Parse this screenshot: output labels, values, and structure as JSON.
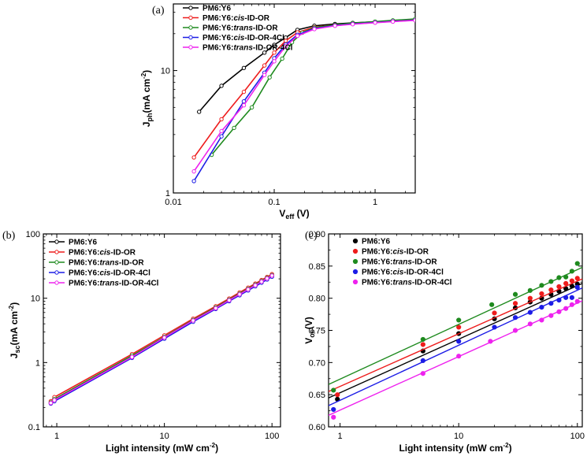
{
  "colors": {
    "PM6:Y6": "#000000",
    "PM6:Y6:cis-ID-OR": "#ee1c1c",
    "PM6:Y6:trans-ID-OR": "#1e8a1e",
    "PM6:Y6:cis-ID-OR-4Cl": "#1c1ce6",
    "PM6:Y6:trans-ID-OR-4Cl": "#ee22ee"
  },
  "chart_data": [
    {
      "panel": "(a)",
      "type": "line",
      "xscale": "log",
      "yscale": "log",
      "xlim": [
        0.01,
        2.5
      ],
      "ylim": [
        1,
        35
      ],
      "xticks": [
        0.01,
        0.1,
        1
      ],
      "xtick_labels": [
        "0.01",
        "0.1",
        "1"
      ],
      "yticks": [
        1,
        10
      ],
      "ytick_labels": [
        "1",
        "10"
      ],
      "xlabel_main": "V",
      "xlabel_sub": "eff",
      "xlabel_unit": " (V)",
      "ylabel_main": "J",
      "ylabel_sub": "ph",
      "ylabel_unit": "(mA cm",
      "ylabel_sup": "-2",
      "ylabel_end": ")",
      "legend": "top-left",
      "series": [
        {
          "name": "PM6:Y6",
          "name_parts": [
            "PM6:Y6",
            "",
            ""
          ],
          "x": [
            0.018,
            0.03,
            0.05,
            0.08,
            0.1,
            0.13,
            0.17,
            0.25,
            0.4,
            0.6,
            1.0,
            1.5,
            2.5
          ],
          "y": [
            4.6,
            7.5,
            10.5,
            14.0,
            16.2,
            18.6,
            21.5,
            23.2,
            24.0,
            24.5,
            25.0,
            25.4,
            26.0
          ]
        },
        {
          "name": "PM6:Y6:cis-ID-OR",
          "name_parts": [
            "PM6:Y6:",
            "cis",
            "-ID-OR"
          ],
          "x": [
            0.016,
            0.03,
            0.05,
            0.08,
            0.1,
            0.13,
            0.17,
            0.25,
            0.4,
            0.6,
            1.0,
            1.5,
            2.5
          ],
          "y": [
            1.95,
            4.0,
            6.7,
            11.0,
            14.0,
            17.5,
            20.5,
            22.6,
            23.6,
            24.2,
            24.9,
            25.5,
            26.2
          ]
        },
        {
          "name": "PM6:Y6:trans-ID-OR",
          "name_parts": [
            "PM6:Y6:",
            "trans",
            "-ID-OR"
          ],
          "x": [
            0.024,
            0.04,
            0.06,
            0.09,
            0.12,
            0.15,
            0.19,
            0.25,
            0.4,
            0.6,
            1.0,
            1.5,
            2.5
          ],
          "y": [
            2.05,
            3.4,
            5.0,
            8.8,
            12.5,
            17.0,
            20.4,
            22.4,
            23.6,
            24.4,
            25.1,
            25.7,
            26.4
          ]
        },
        {
          "name": "PM6:Y6:cis-ID-OR-4Cl",
          "name_parts": [
            "PM6:Y6:",
            "cis",
            "-ID-OR-4Cl"
          ],
          "x": [
            0.016,
            0.03,
            0.05,
            0.08,
            0.1,
            0.13,
            0.17,
            0.25,
            0.4,
            0.6,
            1.0,
            1.5,
            2.5
          ],
          "y": [
            1.25,
            2.9,
            5.6,
            9.6,
            12.6,
            16.3,
            19.6,
            22.0,
            23.3,
            24.0,
            24.7,
            25.2,
            25.8
          ]
        },
        {
          "name": "PM6:Y6:trans-ID-OR-4Cl",
          "name_parts": [
            "PM6:Y6:",
            "trans",
            "-ID-OR-4Cl"
          ],
          "x": [
            0.016,
            0.03,
            0.05,
            0.08,
            0.1,
            0.13,
            0.17,
            0.25,
            0.4,
            0.6,
            1.0,
            1.5,
            2.5
          ],
          "y": [
            1.5,
            3.2,
            5.2,
            9.2,
            11.9,
            15.8,
            19.2,
            21.8,
            23.2,
            23.9,
            24.6,
            25.1,
            25.7
          ]
        }
      ]
    },
    {
      "panel": "(b)",
      "type": "line",
      "xscale": "log",
      "yscale": "log",
      "xlim": [
        0.75,
        120
      ],
      "ylim": [
        0.1,
        100
      ],
      "xticks": [
        1,
        10,
        100
      ],
      "xtick_labels": [
        "1",
        "10",
        "100"
      ],
      "yticks": [
        0.1,
        1,
        10,
        100
      ],
      "ytick_labels": [
        "0.1",
        "1",
        "10",
        "100"
      ],
      "xlabel_main": "Light intensity (mW cm",
      "xlabel_sup": "-2",
      "xlabel_end": ")",
      "ylabel_main": "J",
      "ylabel_sub": "sc",
      "ylabel_unit": "(mA cm",
      "ylabel_sup": "-2",
      "ylabel_end": ")",
      "legend": "top-left",
      "series": [
        {
          "name": "PM6:Y6",
          "name_parts": [
            "PM6:Y6",
            "",
            ""
          ],
          "x": [
            0.88,
            0.95,
            5,
            10,
            18.5,
            30,
            40,
            50,
            60,
            70,
            80,
            90,
            100
          ],
          "y": [
            0.235,
            0.255,
            1.2,
            2.4,
            4.4,
            6.9,
            9.1,
            11.3,
            13.4,
            15.6,
            17.8,
            20.0,
            22.2
          ]
        },
        {
          "name": "PM6:Y6:cis-ID-OR",
          "name_parts": [
            "PM6:Y6:",
            "cis",
            "-ID-OR"
          ],
          "x": [
            0.88,
            0.95,
            5,
            10,
            18.5,
            30,
            40,
            50,
            60,
            70,
            80,
            90,
            100
          ],
          "y": [
            0.25,
            0.29,
            1.35,
            2.65,
            4.8,
            7.5,
            9.9,
            12.3,
            14.6,
            16.9,
            19.2,
            21.4,
            23.7
          ]
        },
        {
          "name": "PM6:Y6:trans-ID-OR",
          "name_parts": [
            "PM6:Y6:",
            "trans",
            "-ID-OR"
          ],
          "x": [
            0.88,
            0.95,
            5,
            10,
            18.5,
            30,
            40,
            50,
            60,
            70,
            80,
            90,
            100
          ],
          "y": [
            0.24,
            0.27,
            1.28,
            2.5,
            4.6,
            7.2,
            9.5,
            11.8,
            14.0,
            16.3,
            18.5,
            20.7,
            22.9
          ]
        },
        {
          "name": "PM6:Y6:cis-ID-OR-4Cl",
          "name_parts": [
            "PM6:Y6:",
            "cis",
            "-ID-OR-4Cl"
          ],
          "x": [
            0.88,
            0.95,
            5,
            10,
            18.5,
            30,
            40,
            50,
            60,
            70,
            80,
            90,
            100
          ],
          "y": [
            0.23,
            0.25,
            1.18,
            2.35,
            4.3,
            6.8,
            9.0,
            11.1,
            13.2,
            15.3,
            17.4,
            19.5,
            21.6
          ]
        },
        {
          "name": "PM6:Y6:trans-ID-OR-4Cl",
          "name_parts": [
            "PM6:Y6:",
            "trans",
            "-ID-OR-4Cl"
          ],
          "x": [
            0.88,
            0.95,
            5,
            10,
            18.5,
            30,
            40,
            50,
            60,
            70,
            80,
            90,
            100
          ],
          "y": [
            0.235,
            0.26,
            1.22,
            2.45,
            4.5,
            7.0,
            9.3,
            11.5,
            13.7,
            15.9,
            18.1,
            20.3,
            22.5
          ]
        }
      ]
    },
    {
      "panel": "(c)",
      "type": "scatter",
      "xscale": "log",
      "yscale": "linear",
      "xlim": [
        0.8,
        110
      ],
      "ylim": [
        0.6,
        0.9
      ],
      "xticks": [
        1,
        10,
        100
      ],
      "xtick_labels": [
        "1",
        "10",
        "100"
      ],
      "yticks": [
        0.6,
        0.65,
        0.7,
        0.75,
        0.8,
        0.85,
        0.9
      ],
      "ytick_labels": [
        "0.60",
        "0.65",
        "0.70",
        "0.75",
        "0.80",
        "0.85",
        "0.90"
      ],
      "xlabel_main": "Light intensity (mW cm",
      "xlabel_sup": "-2",
      "xlabel_end": ")",
      "ylabel_main": "V",
      "ylabel_sub": "oc",
      "ylabel_unit": "(V)",
      "legend": "top-left",
      "series": [
        {
          "name": "PM6:Y6",
          "name_parts": [
            "PM6:Y6",
            "",
            ""
          ],
          "x": [
            0.95,
            5,
            10,
            20,
            30,
            40,
            50,
            60,
            70,
            80,
            90,
            100
          ],
          "y": [
            0.643,
            0.718,
            0.745,
            0.768,
            0.785,
            0.794,
            0.8,
            0.806,
            0.811,
            0.815,
            0.819,
            0.822
          ],
          "fit": [
            0.645,
            0.823
          ]
        },
        {
          "name": "PM6:Y6:cis-ID-OR",
          "name_parts": [
            "PM6:Y6:",
            "cis",
            "-ID-OR"
          ],
          "x": [
            0.95,
            5,
            10,
            20,
            30,
            40,
            50,
            60,
            70,
            80,
            90,
            100
          ],
          "y": [
            0.65,
            0.728,
            0.755,
            0.777,
            0.792,
            0.8,
            0.807,
            0.813,
            0.818,
            0.823,
            0.827,
            0.831
          ],
          "fit": [
            0.655,
            0.83
          ]
        },
        {
          "name": "PM6:Y6:trans-ID-OR",
          "name_parts": [
            "PM6:Y6:",
            "trans",
            "-ID-OR"
          ],
          "x": [
            0.88,
            5,
            10,
            19,
            30,
            40,
            50,
            60,
            70,
            80,
            90,
            100
          ],
          "y": [
            0.657,
            0.736,
            0.766,
            0.79,
            0.806,
            0.812,
            0.82,
            0.826,
            0.832,
            0.833,
            0.842,
            0.854
          ],
          "fit": [
            0.666,
            0.848
          ]
        },
        {
          "name": "PM6:Y6:cis-ID-OR-4Cl",
          "name_parts": [
            "PM6:Y6:",
            "cis",
            "-ID-OR-4Cl"
          ],
          "x": [
            0.88,
            5,
            10,
            20,
            30,
            40,
            50,
            60,
            70,
            80,
            90,
            100
          ],
          "y": [
            0.627,
            0.703,
            0.733,
            0.755,
            0.77,
            0.778,
            0.786,
            0.792,
            0.797,
            0.801,
            0.801,
            0.817
          ],
          "fit": [
            0.633,
            0.816
          ]
        },
        {
          "name": "PM6:Y6:trans-ID-OR-4Cl",
          "name_parts": [
            "PM6:Y6:",
            "trans",
            "-ID-OR-4Cl"
          ],
          "x": [
            0.88,
            5,
            10,
            18.5,
            30,
            40,
            50,
            60,
            70,
            80,
            90,
            100
          ],
          "y": [
            0.615,
            0.683,
            0.71,
            0.733,
            0.75,
            0.76,
            0.766,
            0.773,
            0.779,
            0.784,
            0.79,
            0.795
          ],
          "fit": [
            0.618,
            0.796
          ]
        }
      ]
    }
  ]
}
